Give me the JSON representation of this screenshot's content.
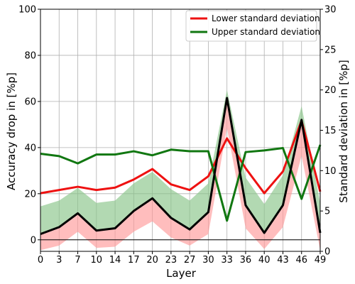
{
  "chart_data": {
    "type": "line",
    "title": "",
    "xlabel": "Layer",
    "ylabel_left": "Accuracy drop in [%p]",
    "ylabel_right": "Standard deviation in [%p]",
    "x_ticks": [
      "0",
      "3",
      "7",
      "10",
      "14",
      "17",
      "20",
      "23",
      "27",
      "30",
      "33",
      "36",
      "40",
      "43",
      "46",
      "49"
    ],
    "left_y": {
      "lim": [
        -5,
        100
      ],
      "ticks": [
        0,
        20,
        40,
        60,
        80,
        100
      ]
    },
    "right_y": {
      "lim": [
        0,
        30
      ],
      "ticks": [
        0,
        5,
        10,
        15,
        20,
        25,
        30
      ]
    },
    "grid": true,
    "legend_position": "top-right",
    "mean_accuracy_drop": [
      2.5,
      5.5,
      11.5,
      4,
      5,
      12.5,
      18,
      9.5,
      4.5,
      12,
      61.5,
      15,
      3,
      15,
      52,
      3
    ],
    "series": [
      {
        "name": "Lower standard deviation",
        "axis": "right",
        "color": "#ee1111",
        "values": [
          7.2,
          7.6,
          8.0,
          7.6,
          7.9,
          8.9,
          10.2,
          8.3,
          7.6,
          9.3,
          14.0,
          10.3,
          7.2,
          9.9,
          16.2,
          7.4
        ],
        "band": [
          [
            -4.5,
            2.5
          ],
          [
            -2.5,
            5.5
          ],
          [
            3.5,
            11.5
          ],
          [
            -3.5,
            4
          ],
          [
            -3,
            5
          ],
          [
            3.5,
            12.5
          ],
          [
            8,
            18
          ],
          [
            1,
            9.5
          ],
          [
            -2.5,
            4.5
          ],
          [
            2.5,
            12
          ],
          [
            48.5,
            61.5
          ],
          [
            5,
            15
          ],
          [
            -4,
            3
          ],
          [
            5.5,
            15
          ],
          [
            36.5,
            52
          ],
          [
            -4.5,
            3
          ]
        ]
      },
      {
        "name": "Upper standard deviation",
        "axis": "right",
        "color": "#117711",
        "values": [
          12.1,
          11.8,
          10.9,
          12.0,
          12.0,
          12.4,
          11.9,
          12.6,
          12.4,
          12.4,
          3.8,
          12.3,
          12.5,
          12.8,
          6.5,
          13.2
        ],
        "band": [
          [
            2.5,
            14.5
          ],
          [
            5.5,
            17
          ],
          [
            11.5,
            22.5
          ],
          [
            4,
            16
          ],
          [
            5,
            17
          ],
          [
            12.5,
            24.5
          ],
          [
            18,
            29.5
          ],
          [
            9.5,
            22
          ],
          [
            4.5,
            17
          ],
          [
            12,
            24.5
          ],
          [
            61.5,
            65
          ],
          [
            15,
            27
          ],
          [
            3,
            15.5
          ],
          [
            15,
            28
          ],
          [
            52,
            58
          ],
          [
            3,
            16
          ]
        ]
      }
    ]
  }
}
